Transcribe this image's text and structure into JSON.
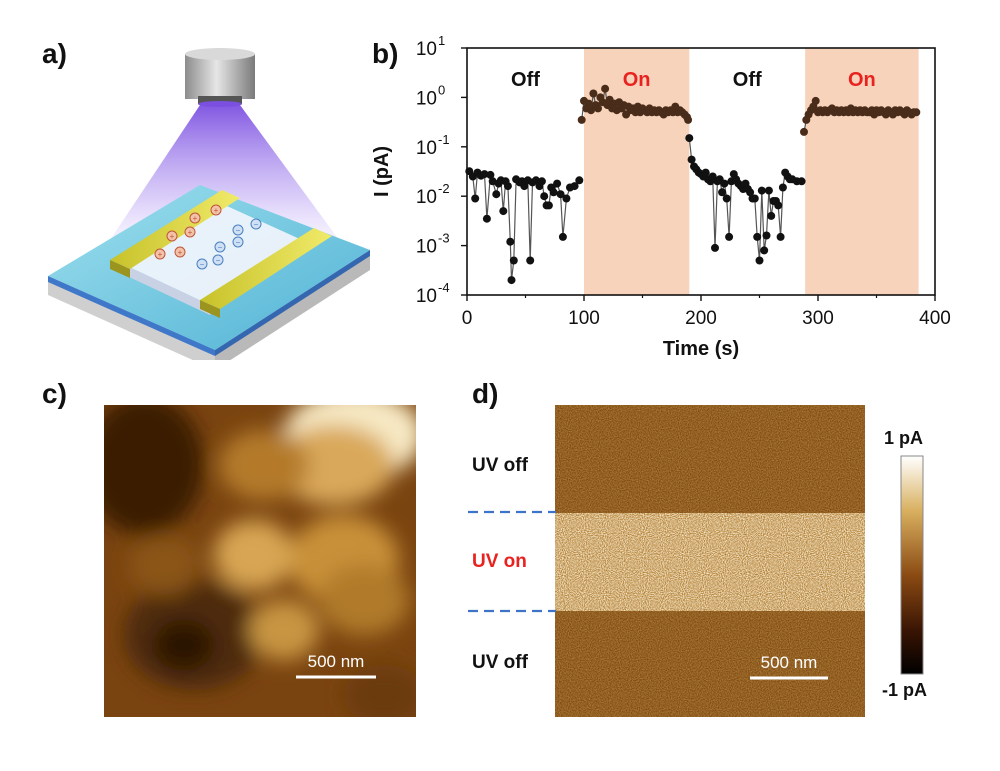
{
  "panels": {
    "a": "a)",
    "b": "b)",
    "c": "c)",
    "d": "d)"
  },
  "chart_data": {
    "type": "scatter",
    "xlabel": "Time (s)",
    "ylabel": "I (pA)",
    "xlim": [
      0,
      400
    ],
    "ylim": [
      0.0001,
      10
    ],
    "yscale": "log",
    "x_ticks": [
      "0",
      "100",
      "200",
      "300",
      "400"
    ],
    "y_ticks": [
      {
        "base": "10",
        "exp": "1"
      },
      {
        "base": "10",
        "exp": "0"
      },
      {
        "base": "10",
        "exp": "-1"
      },
      {
        "base": "10",
        "exp": "-2"
      },
      {
        "base": "10",
        "exp": "-3"
      },
      {
        "base": "10",
        "exp": "-4"
      }
    ],
    "regions": [
      {
        "label": "Off",
        "start": 0,
        "end": 100,
        "color": "#111111",
        "shaded": false
      },
      {
        "label": "On",
        "start": 100,
        "end": 190,
        "color": "#e8231f",
        "shaded": true
      },
      {
        "label": "Off",
        "start": 190,
        "end": 289,
        "color": "#111111",
        "shaded": false
      },
      {
        "label": "On",
        "start": 289,
        "end": 386,
        "color": "#e8231f",
        "shaded": true
      }
    ],
    "shade_color": "#f8d3bb",
    "series": [
      {
        "name": "off-1",
        "color": "#111111",
        "points": [
          [
            2,
            0.032
          ],
          [
            5,
            0.025
          ],
          [
            7,
            0.009
          ],
          [
            9,
            0.03
          ],
          [
            12,
            0.026
          ],
          [
            15,
            0.028
          ],
          [
            17,
            0.0035
          ],
          [
            20,
            0.027
          ],
          [
            22,
            0.02
          ],
          [
            25,
            0.011
          ],
          [
            27,
            0.018
          ],
          [
            29,
            0.021
          ],
          [
            31,
            0.005
          ],
          [
            33,
            0.02
          ],
          [
            35,
            0.016
          ],
          [
            37,
            0.0012
          ],
          [
            38,
            0.0002
          ],
          [
            40,
            0.0005
          ],
          [
            42,
            0.022
          ],
          [
            45,
            0.019
          ],
          [
            47,
            0.02
          ],
          [
            49,
            0.016
          ],
          [
            52,
            0.021
          ],
          [
            54,
            0.0005
          ],
          [
            56,
            0.019
          ],
          [
            59,
            0.021
          ],
          [
            62,
            0.016
          ],
          [
            64,
            0.02
          ],
          [
            66,
            0.01
          ],
          [
            68,
            0.0065
          ],
          [
            70,
            0.0065
          ],
          [
            72,
            0.015
          ],
          [
            74,
            0.012
          ],
          [
            77,
            0.018
          ],
          [
            80,
            0.011
          ],
          [
            82,
            0.0015
          ],
          [
            85,
            0.009
          ],
          [
            88,
            0.015
          ],
          [
            92,
            0.016
          ],
          [
            96,
            0.021
          ]
        ]
      },
      {
        "name": "on-1",
        "color": "#4a2c1a",
        "points": [
          [
            98,
            0.35
          ],
          [
            100,
            0.85
          ],
          [
            102,
            0.6
          ],
          [
            104,
            0.75
          ],
          [
            106,
            0.55
          ],
          [
            108,
            1.2
          ],
          [
            110,
            0.7
          ],
          [
            112,
            0.6
          ],
          [
            114,
            1.0
          ],
          [
            116,
            0.8
          ],
          [
            118,
            1.5
          ],
          [
            120,
            0.7
          ],
          [
            122,
            0.9
          ],
          [
            124,
            0.6
          ],
          [
            126,
            0.75
          ],
          [
            128,
            0.55
          ],
          [
            130,
            0.8
          ],
          [
            132,
            0.6
          ],
          [
            134,
            0.7
          ],
          [
            136,
            0.45
          ],
          [
            138,
            0.65
          ],
          [
            140,
            0.55
          ],
          [
            142,
            0.6
          ],
          [
            144,
            0.5
          ],
          [
            146,
            0.65
          ],
          [
            148,
            0.5
          ],
          [
            150,
            0.6
          ],
          [
            152,
            0.55
          ],
          [
            154,
            0.5
          ],
          [
            156,
            0.6
          ],
          [
            158,
            0.5
          ],
          [
            160,
            0.55
          ],
          [
            162,
            0.5
          ],
          [
            164,
            0.55
          ],
          [
            166,
            0.5
          ],
          [
            168,
            0.45
          ],
          [
            170,
            0.55
          ],
          [
            172,
            0.5
          ],
          [
            174,
            0.55
          ],
          [
            176,
            0.5
          ],
          [
            178,
            0.65
          ],
          [
            180,
            0.5
          ],
          [
            182,
            0.55
          ],
          [
            184,
            0.5
          ],
          [
            186,
            0.45
          ],
          [
            188,
            0.4
          ],
          [
            189,
            0.35
          ]
        ]
      },
      {
        "name": "off-2",
        "color": "#111111",
        "points": [
          [
            190,
            0.15
          ],
          [
            192,
            0.055
          ],
          [
            194,
            0.04
          ],
          [
            196,
            0.035
          ],
          [
            198,
            0.03
          ],
          [
            200,
            0.028
          ],
          [
            202,
            0.025
          ],
          [
            204,
            0.03
          ],
          [
            206,
            0.022
          ],
          [
            208,
            0.02
          ],
          [
            210,
            0.025
          ],
          [
            212,
            0.0009
          ],
          [
            214,
            0.02
          ],
          [
            216,
            0.022
          ],
          [
            218,
            0.012
          ],
          [
            220,
            0.018
          ],
          [
            222,
            0.009
          ],
          [
            224,
            0.0015
          ],
          [
            226,
            0.02
          ],
          [
            228,
            0.028
          ],
          [
            230,
            0.022
          ],
          [
            232,
            0.018
          ],
          [
            234,
            0.016
          ],
          [
            236,
            0.014
          ],
          [
            238,
            0.018
          ],
          [
            240,
            0.014
          ],
          [
            242,
            0.012
          ],
          [
            244,
            0.009
          ],
          [
            246,
            0.009
          ],
          [
            248,
            0.0015
          ],
          [
            250,
            0.0005
          ],
          [
            252,
            0.013
          ],
          [
            254,
            0.0008
          ],
          [
            256,
            0.0016
          ],
          [
            258,
            0.013
          ],
          [
            260,
            0.004
          ],
          [
            262,
            0.008
          ],
          [
            264,
            0.008
          ],
          [
            266,
            0.0065
          ],
          [
            268,
            0.0015
          ],
          [
            270,
            0.015
          ],
          [
            272,
            0.03
          ],
          [
            274,
            0.025
          ],
          [
            276,
            0.022
          ],
          [
            278,
            0.022
          ],
          [
            282,
            0.02
          ],
          [
            286,
            0.02
          ]
        ]
      },
      {
        "name": "on-2",
        "color": "#4a2c1a",
        "points": [
          [
            288,
            0.2
          ],
          [
            290,
            0.35
          ],
          [
            292,
            0.45
          ],
          [
            294,
            0.55
          ],
          [
            296,
            0.65
          ],
          [
            298,
            0.85
          ],
          [
            300,
            0.5
          ],
          [
            302,
            0.55
          ],
          [
            304,
            0.5
          ],
          [
            306,
            0.55
          ],
          [
            308,
            0.5
          ],
          [
            310,
            0.55
          ],
          [
            312,
            0.6
          ],
          [
            314,
            0.5
          ],
          [
            316,
            0.55
          ],
          [
            318,
            0.5
          ],
          [
            320,
            0.55
          ],
          [
            322,
            0.5
          ],
          [
            324,
            0.55
          ],
          [
            326,
            0.5
          ],
          [
            328,
            0.6
          ],
          [
            330,
            0.5
          ],
          [
            332,
            0.55
          ],
          [
            334,
            0.5
          ],
          [
            336,
            0.55
          ],
          [
            338,
            0.5
          ],
          [
            340,
            0.55
          ],
          [
            342,
            0.5
          ],
          [
            344,
            0.5
          ],
          [
            346,
            0.55
          ],
          [
            348,
            0.45
          ],
          [
            350,
            0.55
          ],
          [
            352,
            0.5
          ],
          [
            354,
            0.55
          ],
          [
            356,
            0.5
          ],
          [
            358,
            0.45
          ],
          [
            360,
            0.55
          ],
          [
            362,
            0.5
          ],
          [
            364,
            0.45
          ],
          [
            366,
            0.55
          ],
          [
            368,
            0.5
          ],
          [
            370,
            0.55
          ],
          [
            372,
            0.5
          ],
          [
            374,
            0.45
          ],
          [
            376,
            0.55
          ],
          [
            378,
            0.5
          ],
          [
            380,
            0.45
          ],
          [
            382,
            0.5
          ],
          [
            384,
            0.5
          ]
        ]
      }
    ]
  },
  "afm": {
    "scale_bar": "500 nm"
  },
  "current_map": {
    "scale_bar": "500 nm",
    "rows": [
      {
        "label": "UV off",
        "color": "#111111"
      },
      {
        "label": "UV on",
        "color": "#e8231f"
      },
      {
        "label": "UV off",
        "color": "#111111"
      }
    ],
    "colorbar": {
      "max": "1 pA",
      "min": "-1 pA"
    }
  }
}
